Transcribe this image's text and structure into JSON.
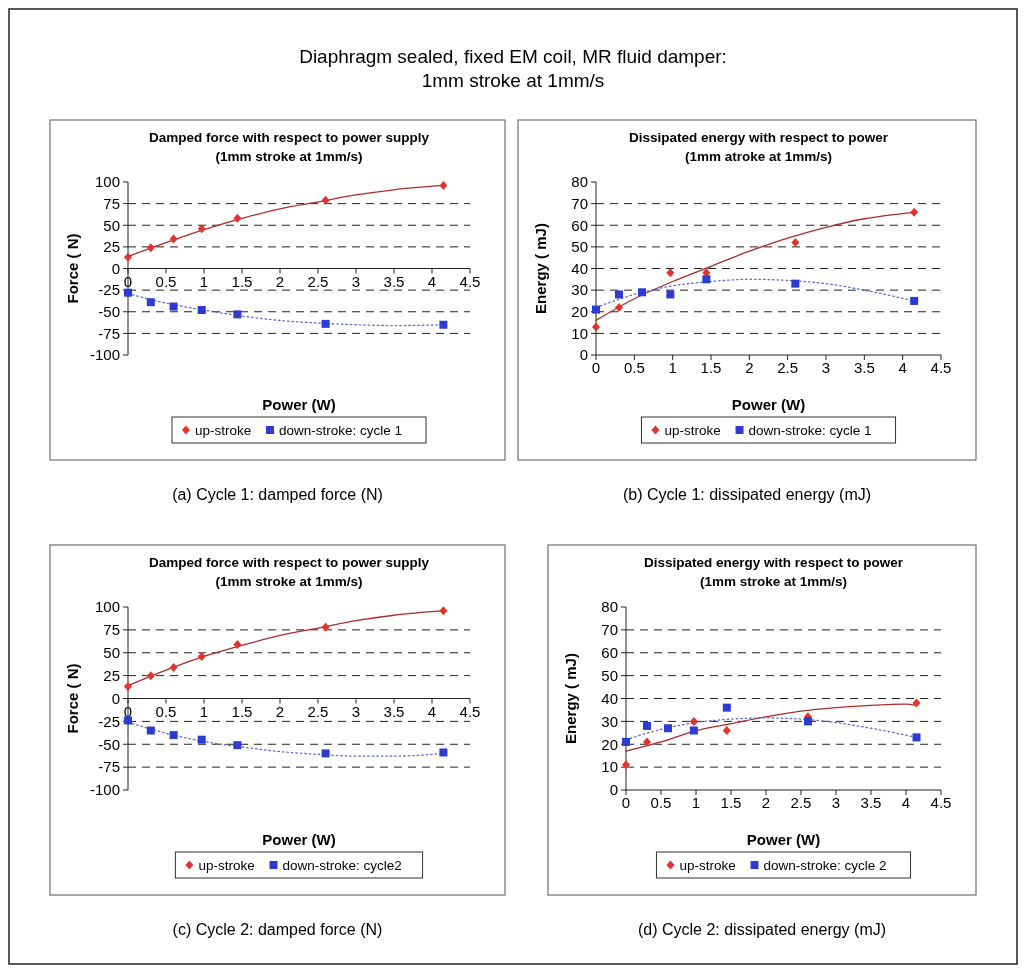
{
  "chart_data": [
    {
      "type": "scatter",
      "title": "Damped force with respect to power supply\n(1mm stroke at 1mm/s)",
      "xlabel": "Power (W)",
      "ylabel": "Force ( N)",
      "xlim": [
        0,
        4.5
      ],
      "xticks": [
        0,
        0.5,
        1,
        1.5,
        2,
        2.5,
        3,
        3.5,
        4,
        4.5
      ],
      "ylim": [
        -100,
        100
      ],
      "yticks": [
        -100,
        -75,
        -50,
        -25,
        0,
        25,
        50,
        75,
        100
      ],
      "grid": "y",
      "legend": "bottom",
      "annotations": [
        "Diaphragm sealed, fixed EM coil, MR fluid damper:\n1mm stroke at 1mm/s",
        "(a) Cycle 1: damped force (N)"
      ],
      "series": [
        {
          "name": "up-stroke",
          "type": "scatter",
          "marker": "diamond",
          "color": "#e0342c",
          "x": [
            0,
            0.3,
            0.6,
            0.97,
            1.44,
            2.6,
            4.15
          ],
          "values": [
            13,
            24,
            34,
            46,
            58,
            79,
            96
          ]
        },
        {
          "name": "down-stroke: cycle 1",
          "type": "scatter",
          "marker": "square",
          "color": "#2c3cd0",
          "x": [
            0,
            0.3,
            0.6,
            0.97,
            1.44,
            2.6,
            4.15
          ],
          "values": [
            -28,
            -39,
            -44,
            -48,
            -53,
            -64,
            -65
          ]
        },
        {
          "type": "line",
          "line_style": "solid",
          "color": "#b02a2a",
          "x": [
            0,
            0.5,
            1,
            1.5,
            2,
            2.5,
            3,
            3.5,
            4.15
          ],
          "values": [
            14,
            30,
            45,
            58,
            69,
            77,
            85,
            91,
            96
          ]
        },
        {
          "type": "line",
          "line_style": "dotted",
          "color": "#5a6ad8",
          "x": [
            0,
            0.5,
            1,
            1.5,
            2,
            2.5,
            3,
            3.5,
            4.15
          ],
          "values": [
            -29,
            -40,
            -48,
            -55,
            -60,
            -63,
            -65,
            -66,
            -65
          ]
        }
      ]
    },
    {
      "type": "scatter",
      "title": "Dissipated energy with respect to power\n(1mm atroke at 1mm/s)",
      "xlabel": "Power (W)",
      "ylabel": "Energy ( mJ)",
      "xlim": [
        0,
        4.5
      ],
      "xticks": [
        0,
        0.5,
        1,
        1.5,
        2,
        2.5,
        3,
        3.5,
        4,
        4.5
      ],
      "ylim": [
        0,
        80
      ],
      "yticks": [
        0,
        10,
        20,
        30,
        40,
        50,
        60,
        70,
        80
      ],
      "grid": "y",
      "legend": "bottom",
      "annotations": [
        "(b) Cycle 1: dissipated energy (mJ)"
      ],
      "series": [
        {
          "name": "up-stroke",
          "type": "scatter",
          "marker": "diamond",
          "color": "#e0342c",
          "x": [
            0,
            0.3,
            0.97,
            1.44,
            2.6,
            4.15
          ],
          "values": [
            13,
            22,
            38,
            38,
            52,
            66
          ]
        },
        {
          "name": "down-stroke: cycle 1",
          "type": "scatter",
          "marker": "square",
          "color": "#2c3cd0",
          "x": [
            0,
            0.3,
            0.6,
            0.97,
            1.44,
            2.6,
            4.15
          ],
          "values": [
            21,
            28,
            29,
            28,
            35,
            33,
            25
          ]
        },
        {
          "type": "line",
          "line_style": "solid",
          "color": "#b02a2a",
          "x": [
            0,
            0.5,
            1,
            1.5,
            2,
            2.5,
            3,
            3.5,
            4.15
          ],
          "values": [
            16,
            26,
            34,
            41,
            48,
            54,
            59,
            63,
            66
          ]
        },
        {
          "type": "line",
          "line_style": "dotted",
          "color": "#5a6ad8",
          "x": [
            0,
            0.5,
            1,
            1.5,
            2,
            2.5,
            3,
            3.5,
            4.15
          ],
          "values": [
            22,
            28,
            32,
            34,
            35,
            34.5,
            33,
            30,
            25
          ]
        }
      ]
    },
    {
      "type": "scatter",
      "title": "Damped force with respect to power supply\n(1mm stroke at 1mm/s)",
      "xlabel": "Power (W)",
      "ylabel": "Force ( N)",
      "xlim": [
        0,
        4.5
      ],
      "xticks": [
        0,
        0.5,
        1,
        1.5,
        2,
        2.5,
        3,
        3.5,
        4,
        4.5
      ],
      "ylim": [
        -100,
        100
      ],
      "yticks": [
        -100,
        -75,
        -50,
        -25,
        0,
        25,
        50,
        75,
        100
      ],
      "grid": "y",
      "legend": "bottom",
      "annotations": [
        "(c) Cycle 2: damped force (N)"
      ],
      "series": [
        {
          "name": "up-stroke",
          "type": "scatter",
          "marker": "diamond",
          "color": "#e0342c",
          "x": [
            0,
            0.3,
            0.6,
            0.97,
            1.44,
            2.6,
            4.15
          ],
          "values": [
            13,
            25,
            34,
            46,
            59,
            78,
            96
          ]
        },
        {
          "name": "down-stroke: cycle2",
          "type": "scatter",
          "marker": "square",
          "color": "#2c3cd0",
          "x": [
            0,
            0.3,
            0.6,
            0.97,
            1.44,
            2.6,
            4.15
          ],
          "values": [
            -24,
            -35,
            -40,
            -45,
            -51,
            -60,
            -59
          ]
        },
        {
          "type": "line",
          "line_style": "solid",
          "color": "#b02a2a",
          "x": [
            0,
            0.5,
            1,
            1.5,
            2,
            2.5,
            3,
            3.5,
            4.15
          ],
          "values": [
            14,
            31,
            46,
            58,
            69,
            77,
            85,
            91,
            96
          ]
        },
        {
          "type": "line",
          "line_style": "dotted",
          "color": "#5a6ad8",
          "x": [
            0,
            0.5,
            1,
            1.5,
            2,
            2.5,
            3,
            3.5,
            4.15
          ],
          "values": [
            -26,
            -38,
            -47,
            -53,
            -58,
            -61,
            -63,
            -63,
            -60
          ]
        }
      ]
    },
    {
      "type": "scatter",
      "title": "Dissipated energy with respect to power\n(1mm stroke at 1mm/s)",
      "xlabel": "Power (W)",
      "ylabel": "Energy ( mJ)",
      "xlim": [
        0,
        4.5
      ],
      "xticks": [
        0,
        0.5,
        1,
        1.5,
        2,
        2.5,
        3,
        3.5,
        4,
        4.5
      ],
      "ylim": [
        0,
        80
      ],
      "yticks": [
        0,
        10,
        20,
        30,
        40,
        50,
        60,
        70,
        80
      ],
      "grid": "y",
      "legend": "bottom",
      "annotations": [
        "(d) Cycle 2: dissipated energy (mJ)"
      ],
      "series": [
        {
          "name": "up-stroke",
          "type": "scatter",
          "marker": "diamond",
          "color": "#e0342c",
          "x": [
            0,
            0.3,
            0.97,
            1.44,
            2.6,
            4.15
          ],
          "values": [
            11,
            21,
            30,
            26,
            32,
            38
          ]
        },
        {
          "name": "down-stroke: cycle 2",
          "type": "scatter",
          "marker": "square",
          "color": "#2c3cd0",
          "x": [
            0,
            0.3,
            0.6,
            0.97,
            1.44,
            2.6,
            4.15
          ],
          "values": [
            21,
            28,
            27,
            26,
            36,
            30,
            23
          ]
        },
        {
          "type": "line",
          "line_style": "solid",
          "color": "#b02a2a",
          "x": [
            0,
            0.5,
            1,
            1.5,
            2,
            2.5,
            3,
            3.5,
            4,
            4.15
          ],
          "values": [
            17,
            21,
            26,
            29,
            32,
            34.5,
            36,
            37,
            37.5,
            37
          ]
        },
        {
          "type": "line",
          "line_style": "dotted",
          "color": "#5a6ad8",
          "x": [
            0,
            0.5,
            1,
            1.5,
            2,
            2.5,
            3,
            3.5,
            4.15
          ],
          "values": [
            22,
            26.5,
            29.5,
            31,
            31.5,
            31,
            29.5,
            27,
            23
          ]
        }
      ]
    }
  ]
}
